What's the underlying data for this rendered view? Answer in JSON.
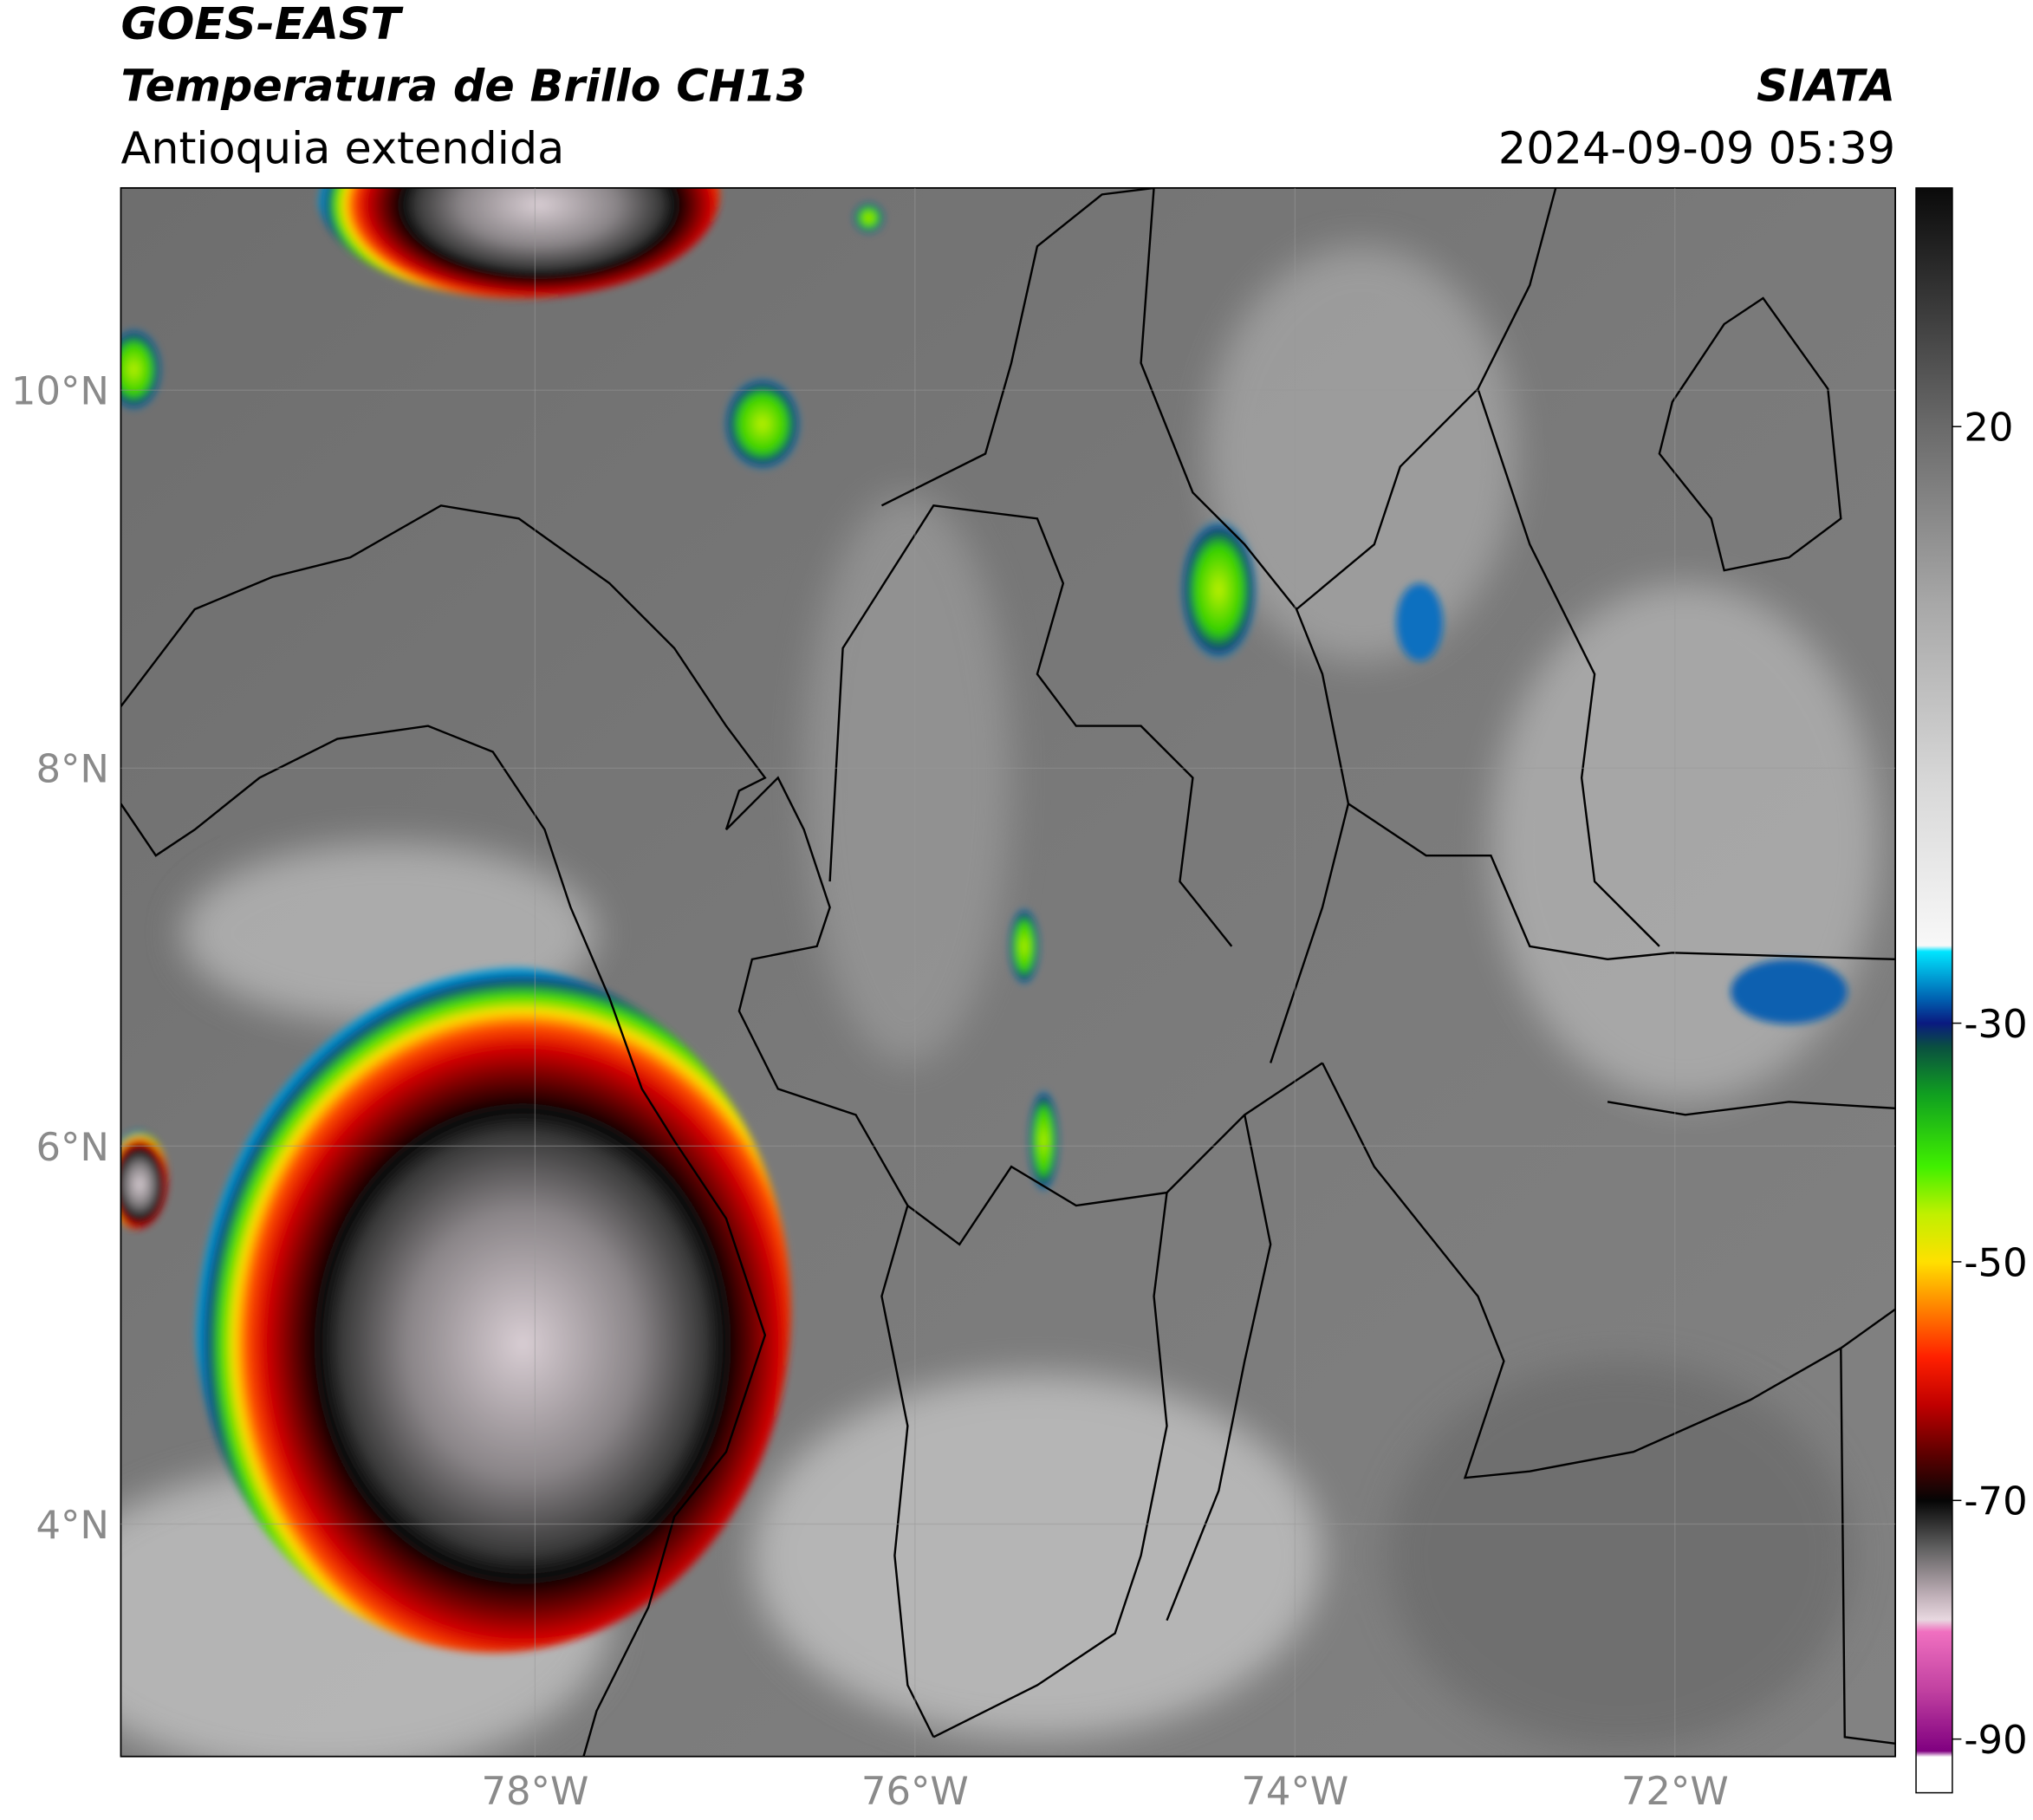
{
  "header": {
    "satellite": "GOES-EAST",
    "product": "Temperatura de Brillo CH13",
    "region": "Antioquia extendida",
    "source": "SIATA",
    "datetime": "2024-09-09 05:39"
  },
  "map": {
    "lon_range": [
      -80.18,
      -70.84
    ],
    "lat_range": [
      2.77,
      11.07
    ],
    "grid": true,
    "lon_ticks": [
      {
        "value": -78,
        "label": "78°W"
      },
      {
        "value": -76,
        "label": "76°W"
      },
      {
        "value": -74,
        "label": "74°W"
      },
      {
        "value": -72,
        "label": "72°W"
      }
    ],
    "lat_ticks": [
      {
        "value": 4,
        "label": "4°N"
      },
      {
        "value": 6,
        "label": "6°N"
      },
      {
        "value": 8,
        "label": "8°N"
      },
      {
        "value": 10,
        "label": "10°N"
      }
    ]
  },
  "colorbar": {
    "range": [
      -94.5,
      40
    ],
    "ticks": [
      -90,
      -70,
      -50,
      -30,
      20
    ],
    "stops": [
      {
        "value": 40,
        "color": "#0a0a0a"
      },
      {
        "value": 30,
        "color": "#3a3a3a"
      },
      {
        "value": 20,
        "color": "#6a6a6a"
      },
      {
        "value": 5,
        "color": "#a8a8a8"
      },
      {
        "value": -10,
        "color": "#d8d8d8"
      },
      {
        "value": -23.5,
        "color": "#f8f8f8"
      },
      {
        "value": -24,
        "color": "#00e5ff"
      },
      {
        "value": -28,
        "color": "#0060b0"
      },
      {
        "value": -30,
        "color": "#0a1a80"
      },
      {
        "value": -32,
        "color": "#0a5040"
      },
      {
        "value": -36,
        "color": "#10a020"
      },
      {
        "value": -42,
        "color": "#40f000"
      },
      {
        "value": -46,
        "color": "#c0f000"
      },
      {
        "value": -50,
        "color": "#ffe000"
      },
      {
        "value": -54,
        "color": "#ff8000"
      },
      {
        "value": -58,
        "color": "#ff2000"
      },
      {
        "value": -62,
        "color": "#c00000"
      },
      {
        "value": -66,
        "color": "#600000"
      },
      {
        "value": -70,
        "color": "#050505"
      },
      {
        "value": -74,
        "color": "#606060"
      },
      {
        "value": -78,
        "color": "#c0b0b8"
      },
      {
        "value": -80,
        "color": "#e8d8e0"
      },
      {
        "value": -81,
        "color": "#f070c0"
      },
      {
        "value": -86,
        "color": "#c040a0"
      },
      {
        "value": -91,
        "color": "#800080"
      },
      {
        "value": -91.5,
        "color": "#ffffff"
      }
    ]
  }
}
